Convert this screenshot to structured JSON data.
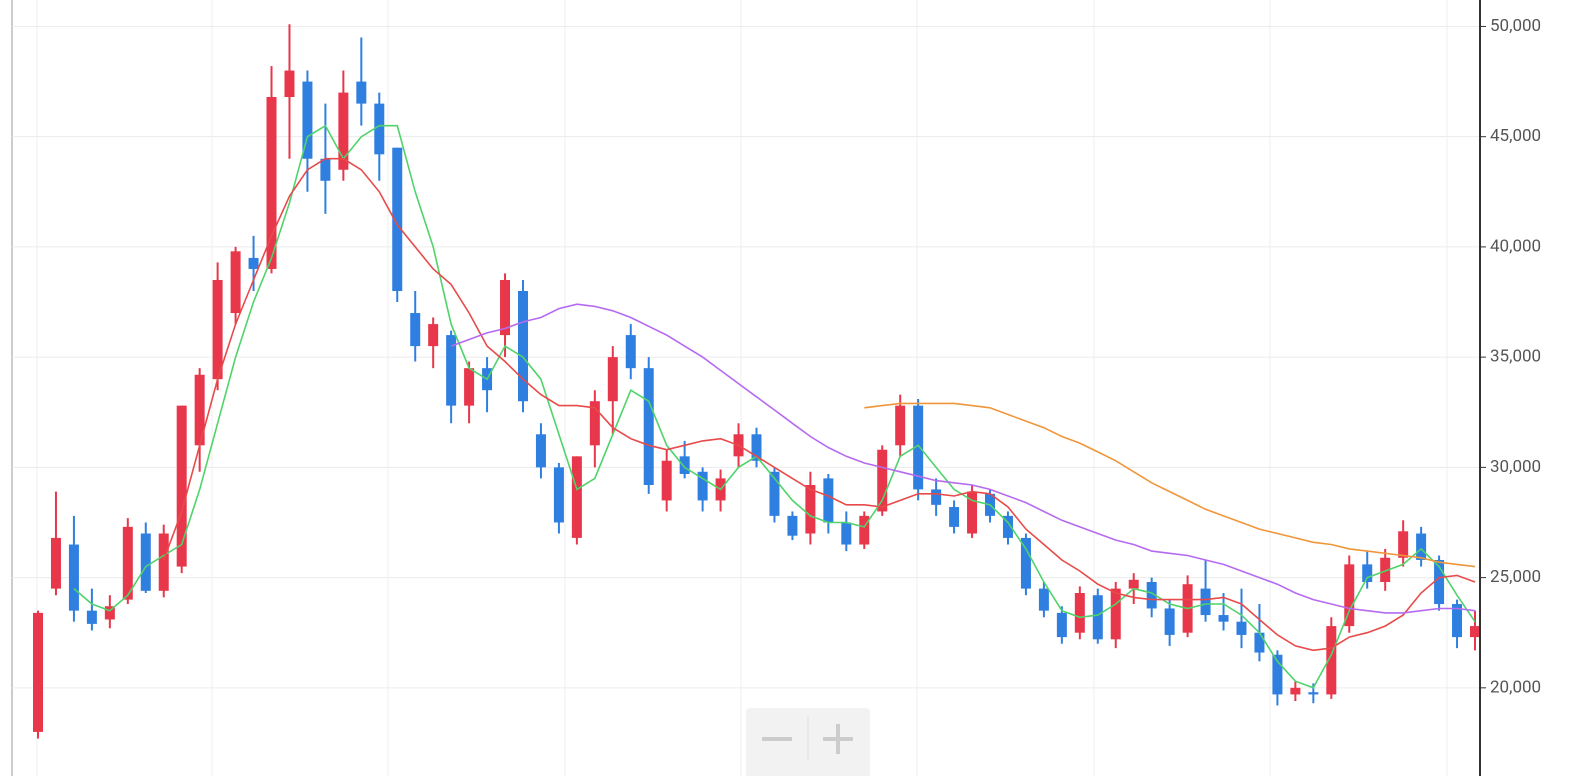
{
  "chart_data": {
    "type": "candlestick",
    "ohlc": {
      "open": [
        18000,
        24500,
        26500,
        23500,
        23100,
        24000,
        27000,
        24400,
        25500,
        31000,
        34000,
        37000,
        39500,
        39000,
        46800,
        47500,
        44000,
        43500,
        47500,
        46500,
        44500,
        37000,
        35500,
        36000,
        32800,
        34500,
        36000,
        38000,
        31500,
        30000,
        26800,
        31000,
        33000,
        36000,
        34500,
        28500,
        30500,
        29800,
        28500,
        30500,
        31500,
        29800,
        27800,
        27000,
        29500,
        27500,
        26500,
        28000,
        31000,
        32800,
        29000,
        28200,
        27000,
        28800,
        27800,
        26800,
        24500,
        23400,
        22500,
        24200,
        22200,
        24500,
        24800,
        23600,
        22500,
        24500,
        23300,
        23000,
        22500,
        21500,
        19700,
        19800,
        19700,
        22800,
        25600,
        24800,
        25900,
        27000,
        25800,
        23800,
        22300
      ],
      "high": [
        23500,
        28900,
        27800,
        24500,
        24200,
        27700,
        27500,
        27400,
        32800,
        34500,
        39300,
        40000,
        40500,
        48200,
        50100,
        48000,
        46500,
        48000,
        49500,
        47000,
        44500,
        38000,
        36800,
        36200,
        34800,
        35000,
        38800,
        38500,
        32000,
        30200,
        30500,
        33500,
        35500,
        36500,
        35000,
        30800,
        31200,
        30000,
        29900,
        32000,
        31800,
        30000,
        28000,
        29800,
        29700,
        28000,
        28000,
        31000,
        33300,
        33100,
        29500,
        28500,
        29200,
        29000,
        28000,
        27000,
        24800,
        23700,
        24600,
        24500,
        24800,
        25200,
        25000,
        24000,
        25100,
        25800,
        24300,
        24500,
        23800,
        21700,
        20300,
        20200,
        23200,
        26000,
        26200,
        26300,
        27600,
        27300,
        26000,
        24000,
        23500
      ],
      "low": [
        17700,
        24200,
        23000,
        22600,
        22700,
        23800,
        24300,
        24100,
        25200,
        29800,
        33500,
        36500,
        38000,
        38800,
        44000,
        42500,
        41500,
        43000,
        45500,
        43000,
        37500,
        34800,
        34500,
        32000,
        32000,
        32500,
        35000,
        32500,
        29500,
        27000,
        26500,
        30000,
        31500,
        34000,
        28800,
        28000,
        29500,
        28000,
        28000,
        30000,
        30000,
        27500,
        26700,
        26500,
        27000,
        26200,
        26300,
        27800,
        30500,
        28500,
        27800,
        27000,
        26800,
        27500,
        26500,
        24200,
        23200,
        22000,
        22200,
        22000,
        21800,
        23800,
        23200,
        21900,
        22300,
        23000,
        22600,
        21800,
        21200,
        19200,
        19400,
        19300,
        19500,
        22500,
        24500,
        24400,
        25500,
        25500,
        23500,
        21800,
        21700
      ],
      "close": [
        23400,
        26800,
        23500,
        22900,
        23700,
        27300,
        24400,
        27000,
        32800,
        34200,
        38500,
        39800,
        39000,
        46800,
        48000,
        44000,
        43000,
        47000,
        46500,
        44200,
        38000,
        35500,
        36500,
        32800,
        34500,
        33500,
        38500,
        33000,
        30000,
        27500,
        30500,
        33000,
        35000,
        34500,
        29200,
        30300,
        29700,
        28500,
        29500,
        31500,
        30300,
        27800,
        26900,
        29200,
        27500,
        26500,
        27800,
        30800,
        32800,
        29000,
        28300,
        27300,
        28900,
        27800,
        26800,
        24500,
        23500,
        22300,
        24300,
        22200,
        24500,
        24900,
        23600,
        22400,
        24700,
        23300,
        23000,
        22400,
        21600,
        19700,
        20000,
        19700,
        22800,
        25600,
        24800,
        25900,
        27100,
        25800,
        23800,
        22300,
        22800
      ]
    },
    "up_color": "#e8374a",
    "down_color": "#2f7fe0",
    "lines": [
      {
        "color": "#4fd36a",
        "values": [
          null,
          null,
          24500,
          23800,
          23500,
          24200,
          25500,
          26000,
          26500,
          29000,
          32000,
          35000,
          37500,
          39500,
          42000,
          45000,
          45500,
          44000,
          45000,
          45500,
          45500,
          42500,
          40000,
          36500,
          34500,
          34000,
          35500,
          35000,
          34000,
          31500,
          29000,
          29500,
          31500,
          33500,
          33000,
          31000,
          30000,
          29500,
          29000,
          30000,
          30500,
          29500,
          28500,
          27800,
          27500,
          27500,
          27300,
          28500,
          30500,
          31000,
          30000,
          29000,
          28500,
          28300,
          27500,
          26300,
          24800,
          23500,
          23200,
          23300,
          23800,
          24500,
          24300,
          23800,
          23600,
          23800,
          23800,
          23300,
          22500,
          21200,
          20300,
          20000,
          21500,
          23500,
          25000,
          25300,
          25600,
          26300,
          25500,
          24200,
          23000
        ]
      },
      {
        "color": "#e84a4a",
        "values": [
          null,
          null,
          null,
          null,
          null,
          null,
          null,
          25800,
          28000,
          31000,
          34000,
          36500,
          38500,
          40500,
          42300,
          43500,
          44000,
          44000,
          43500,
          42500,
          41000,
          40000,
          39000,
          38300,
          37000,
          35500,
          34800,
          34000,
          33300,
          32800,
          32800,
          32700,
          31800,
          31300,
          31000,
          30800,
          31000,
          31200,
          31300,
          31000,
          30500,
          30000,
          29500,
          29000,
          28700,
          28300,
          28300,
          28200,
          28500,
          28800,
          28800,
          28700,
          28900,
          28800,
          28200,
          27200,
          26500,
          25800,
          25300,
          24700,
          24300,
          24100,
          24000,
          24000,
          24000,
          24000,
          24100,
          23800,
          23100,
          22400,
          21900,
          21700,
          21800,
          22300,
          22500,
          22800,
          23300,
          24300,
          25000,
          25100,
          24800
        ]
      },
      {
        "color": "#b56af0",
        "values": [
          null,
          null,
          null,
          null,
          null,
          null,
          null,
          null,
          null,
          null,
          null,
          null,
          null,
          null,
          null,
          null,
          null,
          null,
          null,
          null,
          null,
          null,
          null,
          35500,
          35800,
          36100,
          36300,
          36600,
          36800,
          37200,
          37400,
          37300,
          37100,
          36800,
          36400,
          36000,
          35500,
          35000,
          34400,
          33800,
          33200,
          32600,
          32000,
          31400,
          30900,
          30500,
          30200,
          30000,
          29800,
          29600,
          29400,
          29300,
          29200,
          29000,
          28700,
          28400,
          28000,
          27600,
          27300,
          27000,
          26700,
          26500,
          26200,
          26100,
          26000,
          25800,
          25600,
          25300,
          25000,
          24700,
          24300,
          24000,
          23800,
          23600,
          23500,
          23400,
          23400,
          23500,
          23600,
          23600,
          23500
        ]
      },
      {
        "color": "#f0963a",
        "values": [
          null,
          null,
          null,
          null,
          null,
          null,
          null,
          null,
          null,
          null,
          null,
          null,
          null,
          null,
          null,
          null,
          null,
          null,
          null,
          null,
          null,
          null,
          null,
          null,
          null,
          null,
          null,
          null,
          null,
          null,
          null,
          null,
          null,
          null,
          null,
          null,
          null,
          null,
          null,
          null,
          null,
          null,
          null,
          null,
          null,
          null,
          32700,
          32800,
          32900,
          32900,
          32900,
          32900,
          32800,
          32700,
          32400,
          32100,
          31800,
          31400,
          31100,
          30700,
          30300,
          29800,
          29300,
          28900,
          28500,
          28100,
          27800,
          27500,
          27200,
          27000,
          26800,
          26600,
          26500,
          26300,
          26200,
          26100,
          26000,
          25900,
          25700,
          25600,
          25500
        ]
      }
    ],
    "ylim": [
      16000,
      51200
    ],
    "yticks": [
      {
        "value": 20000,
        "label": "20,000"
      },
      {
        "value": 25000,
        "label": "25,000"
      },
      {
        "value": 30000,
        "label": "30,000"
      },
      {
        "value": 35000,
        "label": "35,000"
      },
      {
        "value": 40000,
        "label": "40,000"
      },
      {
        "value": 45000,
        "label": "45,000"
      },
      {
        "value": 50000,
        "label": "50,000"
      }
    ],
    "grid": true
  }
}
